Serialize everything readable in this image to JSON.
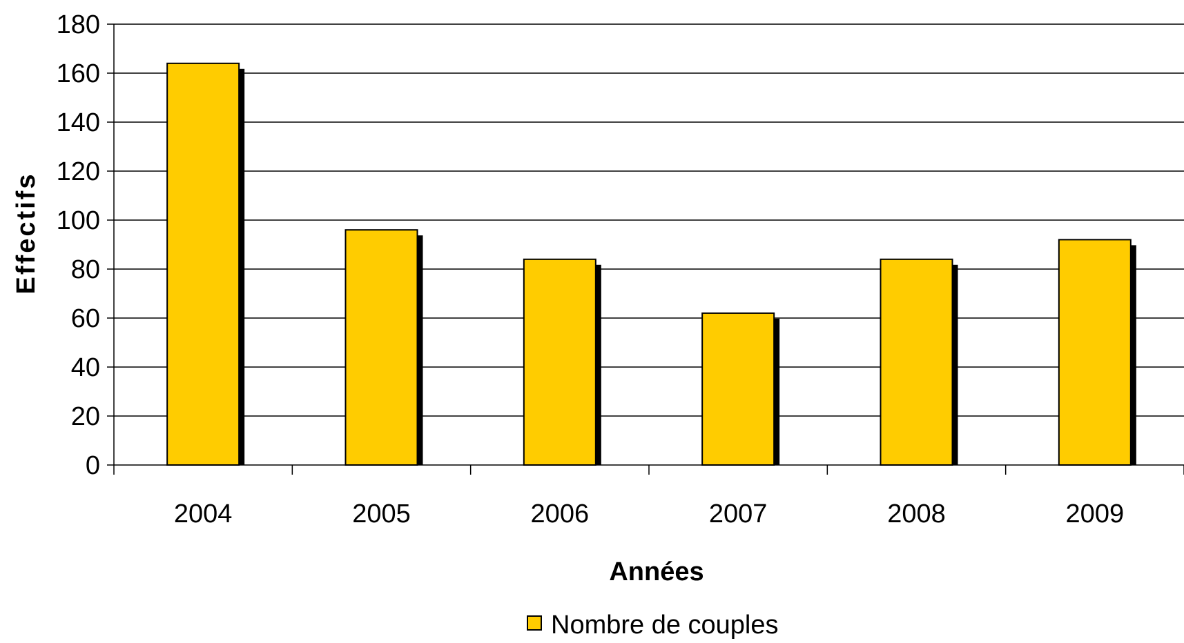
{
  "chart_data": {
    "type": "bar",
    "categories": [
      "2004",
      "2005",
      "2006",
      "2007",
      "2008",
      "2009"
    ],
    "series": [
      {
        "name": "Nombre de couples",
        "values": [
          164,
          96,
          84,
          62,
          84,
          92
        ]
      }
    ],
    "xlabel": "Années",
    "ylabel": "Effectifs",
    "ylim": [
      0,
      180
    ],
    "yticks": [
      "0",
      "20",
      "40",
      "60",
      "80",
      "100",
      "120",
      "140",
      "160",
      "180"
    ],
    "grid": true,
    "legend": "bottom",
    "colors": {
      "bar": "#FFCC00",
      "bar_outline": "#000000",
      "shadow": "#000000",
      "gridline": "#000000"
    }
  }
}
